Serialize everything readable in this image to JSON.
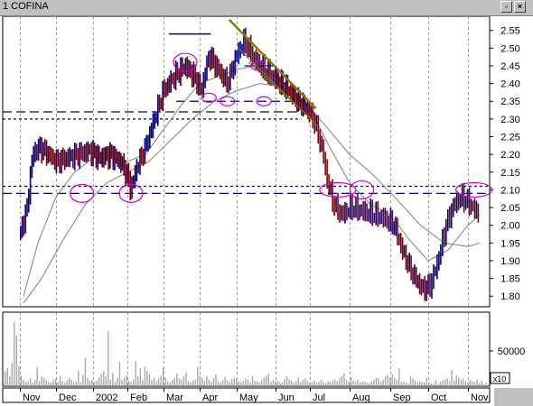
{
  "window": {
    "title": "1 COFINA",
    "buttons": [
      "restore-button",
      "close-button"
    ]
  },
  "colors": {
    "up_bar": "#000080",
    "down_bar": "#800000",
    "ma_line": "#808080",
    "trendline": "#808000",
    "support_line": "#000080",
    "ellipse": "#cc00cc",
    "volume": "#a8a8a8"
  },
  "chart_data": [
    {
      "type": "bar",
      "subtype": "ohlc-price",
      "title": "COFINA",
      "xlabel": "",
      "ylabel": "",
      "x_tick_labels": [
        "Nov",
        "Dec",
        "2002",
        "Feb",
        "Mar",
        "Apr",
        "May",
        "Jun",
        "Jul",
        "Aug",
        "Sep",
        "Oct",
        "Nov"
      ],
      "y_ticks": [
        1.8,
        1.85,
        1.9,
        1.95,
        2.0,
        2.05,
        2.1,
        2.15,
        2.2,
        2.25,
        2.3,
        2.35,
        2.4,
        2.45,
        2.5,
        2.55
      ],
      "y_tick_labels": [
        "1.80",
        "1.85",
        "1.90",
        "1.95",
        "2.00",
        "2.05",
        "2.10",
        "2.15",
        "2.20",
        "2.25",
        "2.30",
        "2.35",
        "2.40",
        "2.45",
        "2.50",
        "2.55"
      ],
      "ylim": [
        1.77,
        2.59
      ],
      "grid": true,
      "close_series": [
        [
          0.0,
          1.97
        ],
        [
          0.2,
          2.05
        ],
        [
          0.35,
          2.2
        ],
        [
          0.55,
          2.22
        ],
        [
          0.8,
          2.2
        ],
        [
          1.0,
          2.18
        ],
        [
          1.3,
          2.19
        ],
        [
          1.6,
          2.2
        ],
        [
          1.9,
          2.21
        ],
        [
          2.2,
          2.19
        ],
        [
          2.5,
          2.2
        ],
        [
          2.8,
          2.18
        ],
        [
          3.0,
          2.14
        ],
        [
          3.1,
          2.1
        ],
        [
          3.25,
          2.16
        ],
        [
          3.5,
          2.22
        ],
        [
          3.75,
          2.3
        ],
        [
          4.0,
          2.38
        ],
        [
          4.3,
          2.42
        ],
        [
          4.6,
          2.45
        ],
        [
          4.85,
          2.42
        ],
        [
          5.05,
          2.38
        ],
        [
          5.25,
          2.48
        ],
        [
          5.5,
          2.44
        ],
        [
          5.75,
          2.4
        ],
        [
          6.0,
          2.48
        ],
        [
          6.2,
          2.52
        ],
        [
          6.45,
          2.47
        ],
        [
          6.7,
          2.44
        ],
        [
          6.9,
          2.42
        ],
        [
          7.15,
          2.4
        ],
        [
          7.4,
          2.38
        ],
        [
          7.65,
          2.35
        ],
        [
          7.9,
          2.33
        ],
        [
          8.1,
          2.3
        ],
        [
          8.3,
          2.22
        ],
        [
          8.45,
          2.12
        ],
        [
          8.6,
          2.06
        ],
        [
          8.8,
          2.03
        ],
        [
          9.05,
          2.05
        ],
        [
          9.3,
          2.04
        ],
        [
          9.6,
          2.03
        ],
        [
          9.85,
          2.02
        ],
        [
          10.1,
          2.0
        ],
        [
          10.35,
          1.92
        ],
        [
          10.6,
          1.86
        ],
        [
          10.85,
          1.82
        ],
        [
          11.05,
          1.83
        ],
        [
          11.25,
          1.9
        ],
        [
          11.45,
          2.0
        ],
        [
          11.65,
          2.06
        ],
        [
          11.85,
          2.08
        ],
        [
          12.05,
          2.06
        ],
        [
          12.2,
          2.04
        ],
        [
          12.3,
          2.03
        ]
      ],
      "moving_average_short": [
        [
          0.1,
          1.8
        ],
        [
          0.5,
          1.95
        ],
        [
          1.0,
          2.08
        ],
        [
          1.5,
          2.15
        ],
        [
          2.0,
          2.19
        ],
        [
          2.5,
          2.19
        ],
        [
          3.0,
          2.18
        ],
        [
          3.5,
          2.2
        ],
        [
          4.0,
          2.27
        ],
        [
          4.5,
          2.34
        ],
        [
          5.0,
          2.4
        ],
        [
          5.5,
          2.42
        ],
        [
          6.0,
          2.44
        ],
        [
          6.5,
          2.45
        ],
        [
          7.0,
          2.42
        ],
        [
          7.5,
          2.38
        ],
        [
          8.0,
          2.33
        ],
        [
          8.5,
          2.22
        ],
        [
          9.0,
          2.12
        ],
        [
          9.5,
          2.06
        ],
        [
          10.0,
          2.03
        ],
        [
          10.5,
          1.96
        ],
        [
          11.0,
          1.9
        ],
        [
          11.5,
          1.93
        ],
        [
          12.0,
          2.0
        ],
        [
          12.3,
          2.03
        ]
      ],
      "moving_average_long": [
        [
          0.1,
          1.78
        ],
        [
          0.6,
          1.85
        ],
        [
          1.2,
          1.96
        ],
        [
          1.8,
          2.06
        ],
        [
          2.4,
          2.12
        ],
        [
          3.0,
          2.15
        ],
        [
          3.6,
          2.18
        ],
        [
          4.2,
          2.24
        ],
        [
          4.8,
          2.3
        ],
        [
          5.4,
          2.35
        ],
        [
          6.0,
          2.38
        ],
        [
          6.6,
          2.4
        ],
        [
          7.2,
          2.39
        ],
        [
          7.8,
          2.35
        ],
        [
          8.4,
          2.28
        ],
        [
          9.0,
          2.2
        ],
        [
          9.6,
          2.14
        ],
        [
          10.2,
          2.07
        ],
        [
          10.8,
          2.0
        ],
        [
          11.4,
          1.95
        ],
        [
          12.0,
          1.94
        ],
        [
          12.3,
          1.95
        ]
      ],
      "horizontal_levels": [
        2.32,
        2.3,
        2.09,
        2.11,
        2.54,
        2.35,
        2.45
      ],
      "trendlines": [
        [
          [
            5.8,
            2.58
          ],
          [
            8.15,
            2.33
          ]
        ],
        [
          [
            6.05,
            2.5
          ],
          [
            8.2,
            2.28
          ]
        ],
        [
          [
            6.3,
            2.46
          ],
          [
            8.05,
            2.3
          ]
        ]
      ],
      "highlight_ellipses": [
        [
          1.7,
          2.09
        ],
        [
          3.1,
          2.09
        ],
        [
          4.6,
          2.46
        ],
        [
          5.25,
          2.36
        ],
        [
          5.75,
          2.35
        ],
        [
          6.55,
          2.45
        ],
        [
          6.7,
          2.35
        ],
        [
          8.7,
          2.1
        ],
        [
          9.3,
          2.1
        ],
        [
          12.15,
          2.1
        ]
      ]
    },
    {
      "type": "bar",
      "subtype": "volume",
      "y_tick_labels": [
        "50000"
      ],
      "y_ticks": [
        50000
      ],
      "ylim": [
        0,
        105000
      ],
      "multiplier_label": "x10",
      "values": [
        21000,
        26000,
        14000,
        33000,
        91000,
        72000,
        28000,
        15000,
        9000,
        6000,
        7000,
        11000,
        5000,
        9000,
        27000,
        7000,
        14000,
        12000,
        8000,
        6000,
        5000,
        9000,
        11000,
        6000,
        14000,
        7000,
        5000,
        8000,
        12000,
        9000,
        6000,
        7000,
        22000,
        5000,
        16000,
        40000,
        12000,
        7000,
        9000,
        6000,
        8000,
        12000,
        18000,
        21000,
        14000,
        78000,
        9000,
        19000,
        6000,
        12000,
        34000,
        9000,
        12000,
        15000,
        8000,
        6000,
        9000,
        36000,
        14000,
        25000,
        9000,
        28000,
        22000,
        17000,
        9000,
        12000,
        7000,
        11000,
        15000,
        26000,
        12000,
        7000,
        5000,
        9000,
        12000,
        18000,
        11000,
        9000,
        14000,
        19000,
        7000,
        5000,
        8000,
        9000,
        27000,
        15000,
        12000,
        7000,
        14000,
        9000,
        6000,
        11000,
        17000,
        7000,
        5000,
        9000,
        13000,
        8000,
        6000,
        10000,
        12000,
        11000,
        7000,
        6000,
        8000,
        11000,
        9000,
        5000,
        14000,
        8000,
        7000,
        5000,
        9000,
        12000,
        14000,
        18000,
        6000,
        9000,
        7000,
        8000,
        6000,
        5000,
        10000,
        14000,
        9000,
        8000,
        5000,
        7000,
        12000,
        6000,
        9000,
        11000,
        7000,
        4000,
        6000,
        8000,
        5000,
        6000,
        9000,
        5000,
        4000,
        7000,
        6000,
        8000,
        9000,
        7000,
        11000,
        14000,
        18000,
        9000,
        7000,
        12000,
        8000,
        6000,
        9000,
        5000,
        7000,
        6000,
        5000,
        4000,
        7000,
        9000,
        12000,
        11000,
        6000,
        9000,
        14000,
        16000,
        12000,
        17000,
        12000,
        9000,
        25000,
        6000,
        7000,
        5000,
        4000,
        14000,
        11000,
        8000,
        5000,
        7000,
        6000,
        5000,
        12000,
        6000,
        4000,
        3000,
        9000,
        3000,
        6000,
        8000,
        9000,
        11000,
        7000,
        23000,
        8000,
        15000,
        12000,
        9000,
        11000,
        7000,
        5000,
        9000,
        7000,
        6000,
        10000,
        4000,
        8000,
        3000,
        5000
      ]
    }
  ]
}
